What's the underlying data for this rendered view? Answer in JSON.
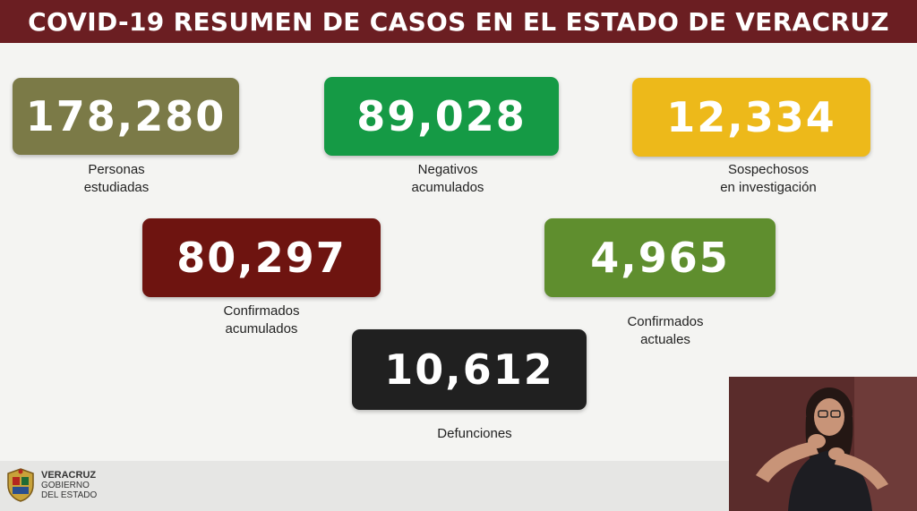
{
  "header": {
    "title": "COVID-19 RESUMEN DE CASOS EN EL ESTADO DE VERACRUZ"
  },
  "stats": [
    {
      "value": "178,280",
      "label_line1": "Personas",
      "label_line2": "estudiadas",
      "color": "#7b7a47"
    },
    {
      "value": "89,028",
      "label_line1": "Negativos",
      "label_line2": "acumulados",
      "color": "#159a45"
    },
    {
      "value": "12,334",
      "label_line1": "Sospechosos",
      "label_line2": "en investigación",
      "color": "#edb91a"
    },
    {
      "value": "80,297",
      "label_line1": "Confirmados",
      "label_line2": "acumulados",
      "color": "#6e1410"
    },
    {
      "value": "4,965",
      "label_line1": "Confirmados",
      "label_line2": "actuales",
      "color": "#5f8e2e"
    },
    {
      "value": "10,612",
      "label_line1": "Defunciones",
      "label_line2": "",
      "color": "#202020"
    }
  ],
  "footer": {
    "logo_line1": "VERACRUZ",
    "logo_line2": "GOBIERNO",
    "logo_line3": "DEL ESTADO",
    "logo_icon": "state-coat-of-arms-icon"
  },
  "colors": {
    "header_bg": "#6b1e22",
    "background": "#f4f4f2"
  }
}
